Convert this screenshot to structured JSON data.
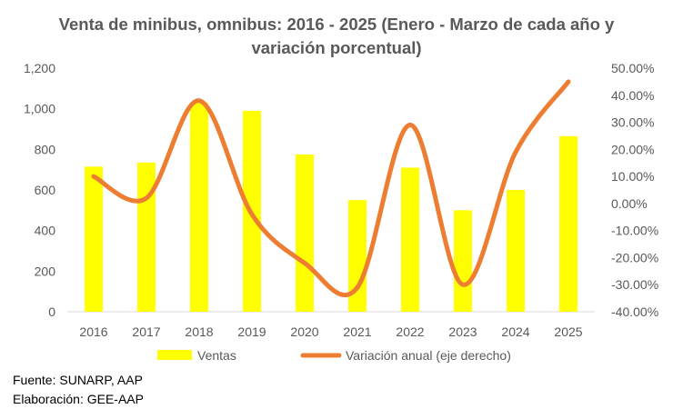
{
  "title": "Venta de minibus, omnibus: 2016 - 2025 (Enero - Marzo de cada año y variación porcentual)",
  "colors": {
    "bars": "#ffff00",
    "line": "#ed7d31",
    "axis_text": "#595959",
    "axis_line": "#d9d9d9"
  },
  "source_line": "Fuente: SUNARP, AAP",
  "credit_line": "Elaboración: GEE-AAP",
  "chart_data": {
    "type": "bar",
    "title": "Venta de minibus, omnibus: 2016 - 2025 (Enero - Marzo de cada año y variación porcentual)",
    "categories": [
      "2016",
      "2017",
      "2018",
      "2019",
      "2020",
      "2021",
      "2022",
      "2023",
      "2024",
      "2025"
    ],
    "series": [
      {
        "name": "Ventas",
        "type": "bar",
        "axis": "left",
        "values": [
          715,
          735,
          1030,
          990,
          775,
          550,
          710,
          500,
          600,
          865
        ]
      },
      {
        "name": "Variación anual (eje derecho)",
        "type": "line",
        "axis": "right",
        "smooth": true,
        "values": [
          10.0,
          2.0,
          38.0,
          -4.0,
          -22.0,
          -31.0,
          29.0,
          -30.0,
          19.0,
          45.0
        ]
      }
    ],
    "y_left": {
      "min": 0,
      "max": 1200,
      "step": 200,
      "tick_labels": [
        "0",
        "200",
        "400",
        "600",
        "800",
        "1,000",
        "1,200"
      ]
    },
    "y_right": {
      "min": -40,
      "max": 50,
      "step": 10,
      "tick_labels": [
        "-40.00%",
        "-30.00%",
        "-20.00%",
        "-10.00%",
        "0.00%",
        "10.00%",
        "20.00%",
        "30.00%",
        "40.00%",
        "50.00%"
      ]
    },
    "grid": false,
    "legend": {
      "position": "bottom",
      "labels": [
        "Ventas",
        "Variación anual (eje derecho)"
      ]
    }
  }
}
